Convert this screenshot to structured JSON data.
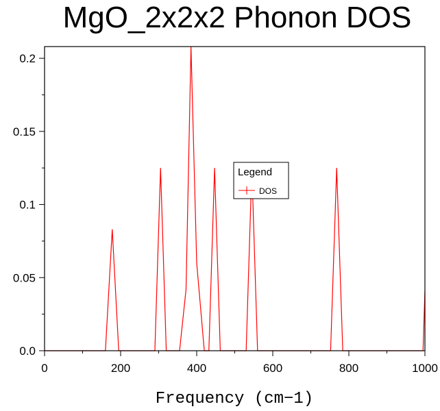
{
  "chart_data": {
    "type": "line",
    "title": "MgO_2x2x2 Phonon DOS",
    "xlabel": "Frequency (cm−1)",
    "ylabel": "",
    "xlim": [
      0,
      1000
    ],
    "ylim": [
      0,
      0.208
    ],
    "x_ticks": [
      0,
      200,
      400,
      600,
      800,
      1000
    ],
    "y_ticks": [
      0.0,
      0.05,
      0.1,
      0.15,
      0.2
    ],
    "x_tick_labels": [
      "0",
      "200",
      "400",
      "600",
      "800",
      "1000"
    ],
    "y_tick_labels": [
      "0.0",
      "0.05",
      "0.1",
      "0.15",
      "0.2"
    ],
    "grid": false,
    "legend": {
      "title": "Legend",
      "position": "center-right"
    },
    "series": [
      {
        "name": "DOS",
        "color": "#ff0000",
        "x": [
          0,
          160,
          178,
          195,
          290,
          305,
          320,
          355,
          372,
          385,
          400,
          420,
          432,
          447,
          462,
          530,
          545,
          560,
          752,
          768,
          784,
          995,
          1000
        ],
        "y": [
          0,
          0,
          0.083,
          0,
          0,
          0.125,
          0,
          0,
          0.042,
          0.208,
          0.06,
          0,
          0,
          0.125,
          0,
          0,
          0.125,
          0,
          0,
          0.125,
          0,
          0,
          0.041
        ]
      }
    ]
  }
}
